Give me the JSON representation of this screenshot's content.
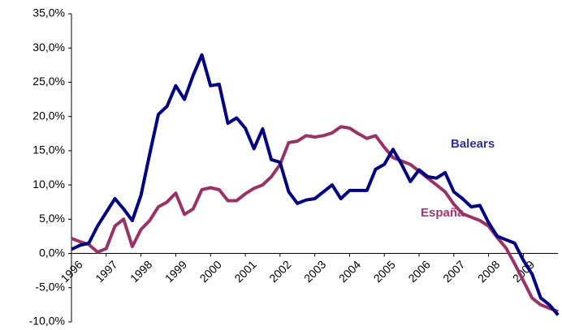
{
  "chart_data": {
    "type": "line",
    "categories": [
      "1996",
      null,
      null,
      null,
      "1997",
      null,
      null,
      null,
      "1998",
      null,
      null,
      null,
      "1999",
      null,
      null,
      null,
      "2000",
      null,
      null,
      null,
      "2001",
      null,
      null,
      null,
      "2002",
      null,
      null,
      null,
      "2003",
      null,
      null,
      null,
      "2004",
      null,
      null,
      null,
      "2005",
      null,
      null,
      null,
      "2006",
      null,
      null,
      null,
      "2007",
      null,
      null,
      null,
      "2008",
      null,
      null,
      null,
      "2009",
      null,
      null,
      null,
      null
    ],
    "series": [
      {
        "name": "Balears",
        "color": "#000080",
        "values": [
          0.6,
          1.2,
          1.5,
          4.0,
          6.0,
          8.0,
          6.5,
          4.8,
          8.5,
          14.5,
          20.3,
          21.5,
          24.5,
          22.5,
          26.0,
          29.0,
          24.5,
          24.7,
          19.0,
          19.8,
          18.3,
          15.3,
          18.2,
          13.7,
          13.3,
          9.0,
          7.3,
          7.8,
          8.0,
          9.0,
          10.0,
          8.0,
          9.2,
          9.2,
          9.2,
          12.3,
          13.0,
          15.2,
          13.0,
          10.5,
          12.2,
          11.2,
          11.0,
          11.8,
          9.0,
          8.0,
          6.8,
          7.0,
          4.5,
          2.5,
          2.0,
          1.5,
          -1.0,
          -3.0,
          -6.5,
          -7.5,
          -9.0
        ]
      },
      {
        "name": "España",
        "color": "#993366",
        "values": [
          2.2,
          1.7,
          1.3,
          0.2,
          0.7,
          4.0,
          5.0,
          1.0,
          3.5,
          4.8,
          6.8,
          7.5,
          8.8,
          5.7,
          6.5,
          9.3,
          9.6,
          9.3,
          7.7,
          7.7,
          8.7,
          9.5,
          10.0,
          11.2,
          13.0,
          16.2,
          16.4,
          17.2,
          17.0,
          17.2,
          17.6,
          18.5,
          18.3,
          17.5,
          16.8,
          17.2,
          15.5,
          14.0,
          13.5,
          13.0,
          12.0,
          11.0,
          10.0,
          9.0,
          7.2,
          5.8,
          5.3,
          4.8,
          4.0,
          2.3,
          0.8,
          -1.5,
          -4.0,
          -6.5,
          -7.5,
          -8.0,
          -8.5
        ]
      }
    ],
    "ylim": [
      -10,
      35
    ],
    "yticks": [
      {
        "value": -10,
        "label": "-10,0%"
      },
      {
        "value": -5,
        "label": "-5,0%"
      },
      {
        "value": 0,
        "label": "0,0%"
      },
      {
        "value": 5,
        "label": "5,0%"
      },
      {
        "value": 10,
        "label": "10,0%"
      },
      {
        "value": 15,
        "label": "15,0%"
      },
      {
        "value": 20,
        "label": "20,0%"
      },
      {
        "value": 25,
        "label": "25,0%"
      },
      {
        "value": 30,
        "label": "30,0%"
      },
      {
        "value": 35,
        "label": "35,0%"
      }
    ]
  }
}
